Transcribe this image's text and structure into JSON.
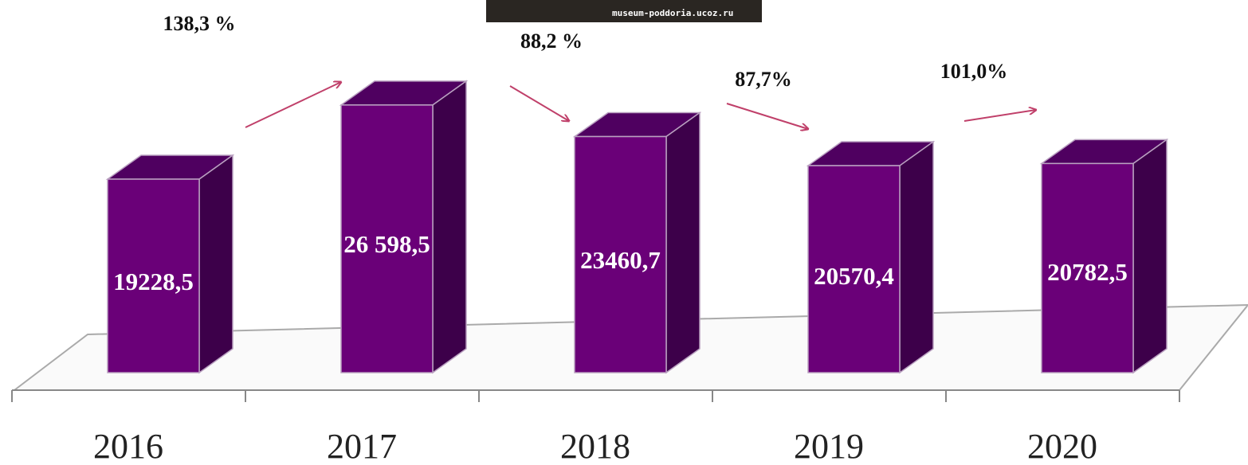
{
  "chart_data": {
    "type": "bar3d",
    "categories": [
      "2016",
      "2017",
      "2018",
      "2019",
      "2020"
    ],
    "values": [
      19228.5,
      26598.5,
      23460.7,
      20570.4,
      20782.5
    ],
    "value_labels": [
      "19228,5",
      "26 598,5",
      "23460,7",
      "20570,4",
      "20782,5"
    ],
    "color": "#6a0078",
    "annotations": [
      "138,3 %",
      "88,2 %",
      "87,7%",
      "101,0%"
    ],
    "watermark": "museum-poddoria.ucoz.ru"
  }
}
